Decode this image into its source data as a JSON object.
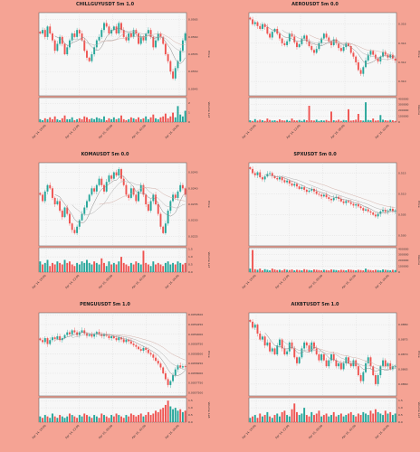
{
  "colors": {
    "background": "#f5a394",
    "up": "#26a69a",
    "down": "#ef5350",
    "ma1": "#888888",
    "ma2": "#b0b0b0",
    "ma3": "#d3b0a8"
  },
  "panels": [
    {
      "title": "CHILLGUYUSDT 5m 1.0",
      "ylabel": "Price",
      "vlabel": "Volume 1e7",
      "chart_data": {
        "type": "candlestick",
        "x_ticks": [
          "Apr 14, 20:00",
          "Apr 14, 22:00",
          "Apr 15, 00:00",
          "Apr 15, 02:00",
          "Apr 15, 04:00"
        ],
        "y_ticks": [
          "0.0565",
          "0.0560",
          "0.0555",
          "0.0550",
          "0.0545"
        ],
        "ylim": [
          0.0543,
          0.0567
        ],
        "v_ticks": [
          "2",
          "1",
          "0"
        ],
        "vlim": [
          0,
          2.6
        ],
        "close": [
          0.0561,
          0.0562,
          0.056,
          0.0563,
          0.0561,
          0.0559,
          0.0556,
          0.0558,
          0.056,
          0.0558,
          0.0555,
          0.0557,
          0.0559,
          0.0561,
          0.056,
          0.0562,
          0.0561,
          0.0559,
          0.0556,
          0.0554,
          0.0553,
          0.0555,
          0.0557,
          0.0559,
          0.056,
          0.0562,
          0.0564,
          0.0563,
          0.0561,
          0.0562,
          0.0563,
          0.0561,
          0.0564,
          0.0562,
          0.056,
          0.0559,
          0.0561,
          0.056,
          0.0562,
          0.0561,
          0.0558,
          0.056,
          0.0559,
          0.0561,
          0.0562,
          0.056,
          0.0557,
          0.0559,
          0.0561,
          0.056,
          0.0558,
          0.0555,
          0.0553,
          0.055,
          0.0548,
          0.0551,
          0.0553,
          0.0556,
          0.0559,
          0.0561
        ],
        "volume": [
          0.3,
          0.2,
          0.4,
          0.3,
          0.5,
          0.3,
          0.6,
          0.3,
          0.2,
          0.4,
          0.7,
          0.3,
          0.3,
          0.5,
          0.2,
          0.3,
          0.4,
          0.3,
          0.6,
          0.5,
          0.3,
          0.4,
          0.3,
          0.5,
          0.4,
          0.3,
          0.6,
          0.2,
          0.4,
          0.3,
          0.5,
          0.3,
          0.4,
          0.7,
          0.3,
          0.2,
          0.3,
          0.5,
          0.4,
          0.3,
          0.5,
          0.3,
          0.4,
          0.6,
          0.3,
          0.5,
          0.8,
          0.4,
          0.3,
          0.5,
          0.6,
          0.9,
          0.4,
          0.6,
          1.0,
          0.5,
          1.7,
          0.8,
          0.6,
          1.2
        ]
      }
    },
    {
      "title": "AEROUSDT 5m 0.0",
      "ylabel": "Price",
      "vlabel": "Volume",
      "chart_data": {
        "type": "candlestick",
        "x_ticks": [
          "Apr 14, 20:00",
          "Apr 14, 22:00",
          "Apr 15, 00:00",
          "Apr 15, 02:00"
        ],
        "y_ticks": [
          "0.316",
          "0.314",
          "0.312",
          "0.310"
        ],
        "ylim": [
          0.3085,
          0.3172
        ],
        "v_ticks": [
          "400000",
          "300000",
          "200000",
          "100000",
          "0"
        ],
        "vlim": [
          0,
          420000
        ],
        "close": [
          0.3165,
          0.316,
          0.3162,
          0.3158,
          0.3155,
          0.316,
          0.3157,
          0.315,
          0.3146,
          0.3152,
          0.3155,
          0.315,
          0.3145,
          0.314,
          0.3138,
          0.3142,
          0.315,
          0.3147,
          0.3141,
          0.3136,
          0.3139,
          0.3145,
          0.3148,
          0.3142,
          0.3137,
          0.3133,
          0.313,
          0.3134,
          0.314,
          0.3145,
          0.315,
          0.3146,
          0.3142,
          0.3138,
          0.3144,
          0.314,
          0.3135,
          0.3132,
          0.3136,
          0.314,
          0.3137,
          0.313,
          0.3126,
          0.312,
          0.3112,
          0.3108,
          0.3115,
          0.3122,
          0.3128,
          0.3132,
          0.3128,
          0.3124,
          0.3121,
          0.3126,
          0.3131,
          0.3128,
          0.3125,
          0.3128,
          0.3124,
          0.3122
        ],
        "volume": [
          30000,
          20000,
          50000,
          25000,
          40000,
          30000,
          20000,
          60000,
          35000,
          25000,
          30000,
          20000,
          45000,
          30000,
          25000,
          35000,
          20000,
          60000,
          30000,
          25000,
          35000,
          20000,
          40000,
          30000,
          280000,
          30000,
          25000,
          40000,
          20000,
          30000,
          25000,
          35000,
          20000,
          180000,
          30000,
          25000,
          40000,
          20000,
          35000,
          30000,
          220000,
          25000,
          30000,
          40000,
          140000,
          30000,
          25000,
          340000,
          35000,
          30000,
          60000,
          25000,
          30000,
          120000,
          40000,
          30000,
          25000,
          35000,
          30000,
          20000
        ]
      }
    },
    {
      "title": "KOMAUSDT 5m 0.0",
      "ylabel": "Price",
      "vlabel": "Volume 1e7",
      "chart_data": {
        "type": "candlestick",
        "x_ticks": [
          "Apr 14, 20:00",
          "Apr 14, 22:00",
          "Apr 15, 00:00",
          "Apr 15, 02:00",
          "Apr 15, 04:00"
        ],
        "y_ticks": [
          "0.0245",
          "0.0240",
          "0.0235",
          "0.0230",
          "0.0225"
        ],
        "ylim": [
          0.0222,
          0.0248
        ],
        "v_ticks": [
          "1.5",
          "1.0",
          "0.5",
          "0.0"
        ],
        "vlim": [
          0,
          1.6
        ],
        "close": [
          0.0238,
          0.0236,
          0.0239,
          0.0241,
          0.024,
          0.0237,
          0.0235,
          0.0236,
          0.0233,
          0.0231,
          0.0234,
          0.0232,
          0.0229,
          0.0227,
          0.0226,
          0.0228,
          0.023,
          0.0232,
          0.0234,
          0.0236,
          0.0238,
          0.024,
          0.0239,
          0.0241,
          0.0243,
          0.0241,
          0.0239,
          0.0242,
          0.0244,
          0.0243,
          0.0245,
          0.0244,
          0.0246,
          0.0243,
          0.0241,
          0.0238,
          0.0237,
          0.024,
          0.0238,
          0.0236,
          0.0239,
          0.0241,
          0.0238,
          0.0235,
          0.0233,
          0.0236,
          0.0238,
          0.0235,
          0.0232,
          0.0228,
          0.0226,
          0.0229,
          0.0233,
          0.0236,
          0.0238,
          0.0237,
          0.0239,
          0.0241,
          0.024,
          0.0238
        ],
        "volume": [
          0.7,
          0.5,
          0.6,
          0.8,
          0.4,
          0.6,
          0.5,
          0.7,
          0.6,
          0.5,
          0.8,
          0.6,
          0.7,
          0.5,
          0.4,
          0.6,
          0.5,
          0.7,
          0.6,
          0.8,
          0.6,
          0.5,
          0.7,
          0.6,
          0.5,
          0.9,
          0.6,
          0.4,
          0.7,
          0.5,
          0.6,
          0.5,
          0.7,
          1.0,
          0.6,
          0.5,
          0.4,
          0.6,
          0.5,
          0.7,
          0.6,
          0.5,
          1.4,
          0.6,
          0.5,
          0.4,
          0.7,
          0.5,
          0.6,
          0.5,
          0.4,
          0.6,
          0.7,
          0.5,
          0.6,
          0.5,
          0.7,
          0.6,
          0.5,
          0.6
        ]
      }
    },
    {
      "title": "SPXUSDT 5m 0.0",
      "ylabel": "Price",
      "vlabel": "Volume",
      "chart_data": {
        "type": "candlestick",
        "x_ticks": [
          "Apr 14, 20:00",
          "Apr 14, 22:00",
          "Apr 15, 00:00",
          "Apr 15, 02:00",
          "Apr 15, 04:00"
        ],
        "y_ticks": [
          "0.515",
          "0.510",
          "0.505",
          "0.500"
        ],
        "ylim": [
          0.4975,
          0.5175
        ],
        "v_ticks": [
          "400000",
          "300000",
          "200000",
          "100000",
          "0"
        ],
        "vlim": [
          0,
          420000
        ],
        "close": [
          0.516,
          0.515,
          0.5145,
          0.5152,
          0.514,
          0.5135,
          0.5142,
          0.5148,
          0.515,
          0.5143,
          0.5138,
          0.5135,
          0.514,
          0.5133,
          0.5128,
          0.5132,
          0.5125,
          0.512,
          0.5124,
          0.5118,
          0.5112,
          0.5116,
          0.511,
          0.5105,
          0.5108,
          0.5112,
          0.5106,
          0.51,
          0.5098,
          0.5094,
          0.5098,
          0.5092,
          0.5088,
          0.5085,
          0.509,
          0.5093,
          0.5088,
          0.5082,
          0.5078,
          0.5083,
          0.508,
          0.5076,
          0.5072,
          0.5075,
          0.507,
          0.5066,
          0.506,
          0.5063,
          0.5058,
          0.5055,
          0.505,
          0.5046,
          0.5052,
          0.5058,
          0.5062,
          0.5057,
          0.506,
          0.5064,
          0.5058,
          0.506
        ],
        "volume": [
          60000,
          380000,
          50000,
          40000,
          60000,
          30000,
          50000,
          40000,
          30000,
          60000,
          45000,
          35000,
          40000,
          30000,
          50000,
          40000,
          35000,
          45000,
          30000,
          40000,
          35000,
          30000,
          50000,
          40000,
          35000,
          30000,
          45000,
          40000,
          35000,
          30000,
          40000,
          35000,
          30000,
          45000,
          40000,
          35000,
          30000,
          40000,
          35000,
          30000,
          45000,
          40000,
          35000,
          30000,
          40000,
          35000,
          30000,
          60000,
          40000,
          35000,
          30000,
          40000,
          35000,
          30000,
          45000,
          40000,
          35000,
          30000,
          40000,
          35000
        ]
      }
    },
    {
      "title": "PENGUUSDT 5m 1.0",
      "ylabel": "Price",
      "vlabel": "Volume 1e8",
      "chart_data": {
        "type": "candlestick",
        "x_ticks": [
          "Apr 14, 20:00",
          "Apr 14, 22:00",
          "Apr 15, 00:00",
          "Apr 15, 02:00",
          "Apr 15, 04:00"
        ],
        "y_ticks": [
          "0.0059500",
          "0.0059250",
          "0.0059000",
          "0.0058750",
          "0.0058500",
          "0.0058250",
          "0.0058000",
          "0.0057750",
          "0.0057500"
        ],
        "ylim": [
          0.005742,
          0.005955
        ],
        "v_ticks": [
          "1.5",
          "1.0",
          "0.5",
          "0.0"
        ],
        "vlim": [
          0,
          1.7
        ],
        "close": [
          0.005885,
          0.00588,
          0.00589,
          0.005875,
          0.005885,
          0.005892,
          0.005888,
          0.005895,
          0.005885,
          0.00589,
          0.005898,
          0.005905,
          0.0059,
          0.00591,
          0.005905,
          0.005898,
          0.005905,
          0.00591,
          0.005902,
          0.005896,
          0.0059,
          0.005894,
          0.0059,
          0.005906,
          0.0059,
          0.005895,
          0.0059,
          0.005896,
          0.00589,
          0.005895,
          0.00589,
          0.005885,
          0.005892,
          0.005887,
          0.00588,
          0.005886,
          0.005882,
          0.005876,
          0.005872,
          0.005868,
          0.005862,
          0.005858,
          0.005865,
          0.00586,
          0.005852,
          0.005848,
          0.00584,
          0.005832,
          0.005825,
          0.005815,
          0.0058,
          0.005785,
          0.00577,
          0.00578,
          0.005795,
          0.00581,
          0.00582,
          0.005815,
          0.005818,
          0.005816
        ],
        "volume": [
          0.4,
          0.3,
          0.5,
          0.4,
          0.3,
          0.6,
          0.4,
          0.3,
          0.5,
          0.4,
          0.3,
          0.4,
          0.6,
          0.5,
          0.4,
          0.3,
          0.5,
          0.4,
          0.6,
          0.5,
          0.4,
          0.3,
          0.5,
          0.4,
          0.3,
          0.6,
          0.5,
          0.4,
          0.3,
          0.5,
          0.4,
          0.6,
          0.5,
          0.4,
          0.3,
          0.5,
          0.4,
          0.6,
          0.5,
          0.4,
          0.5,
          0.6,
          0.4,
          0.5,
          0.7,
          0.5,
          0.6,
          0.8,
          0.7,
          0.9,
          1.0,
          1.2,
          1.5,
          1.1,
          0.9,
          1.0,
          0.8,
          0.9,
          0.7,
          0.8
        ]
      }
    },
    {
      "title": "AIXBTUSDT 5m 1.0",
      "ylabel": "Price",
      "vlabel": "Volume 1e7",
      "chart_data": {
        "type": "candlestick",
        "x_ticks": [
          "Apr 14, 20:00",
          "Apr 14, 22:00",
          "Apr 15, 00:00",
          "Apr 15, 02:00",
          "Apr 15, 04:00"
        ],
        "y_ticks": [
          "0.0880",
          "0.0875",
          "0.0870",
          "0.0865",
          "0.0860"
        ],
        "ylim": [
          0.0856,
          0.0884
        ],
        "v_ticks": [
          "1.5",
          "1.0",
          "0.5",
          "0.0"
        ],
        "vlim": [
          0,
          1.7
        ],
        "close": [
          0.0881,
          0.0879,
          0.088,
          0.0877,
          0.0875,
          0.0876,
          0.0873,
          0.0874,
          0.0871,
          0.0872,
          0.087,
          0.0873,
          0.0875,
          0.0872,
          0.087,
          0.0871,
          0.0874,
          0.0872,
          0.0869,
          0.0867,
          0.0869,
          0.0872,
          0.0874,
          0.0873,
          0.0871,
          0.0874,
          0.0872,
          0.087,
          0.0868,
          0.087,
          0.0868,
          0.0866,
          0.0868,
          0.087,
          0.0868,
          0.0866,
          0.0867,
          0.0865,
          0.0867,
          0.0869,
          0.0867,
          0.0866,
          0.0868,
          0.0866,
          0.0863,
          0.0861,
          0.0864,
          0.0867,
          0.0869,
          0.0866,
          0.0863,
          0.086,
          0.0863,
          0.0866,
          0.0868,
          0.0866,
          0.0867,
          0.0865,
          0.0866,
          0.0866
        ],
        "volume": [
          0.3,
          0.4,
          0.5,
          0.3,
          0.6,
          0.4,
          0.5,
          0.7,
          0.4,
          0.3,
          0.5,
          0.6,
          0.4,
          0.7,
          0.8,
          0.5,
          0.4,
          0.9,
          1.3,
          0.7,
          0.5,
          0.6,
          1.0,
          0.5,
          0.4,
          0.7,
          0.5,
          0.6,
          0.8,
          0.4,
          0.5,
          0.6,
          0.4,
          0.5,
          0.7,
          0.4,
          0.5,
          0.6,
          0.4,
          0.5,
          0.6,
          0.7,
          0.5,
          0.4,
          0.6,
          0.5,
          0.7,
          0.6,
          0.5,
          0.8,
          0.6,
          0.9,
          0.7,
          0.6,
          0.5,
          0.8,
          0.6,
          0.7,
          0.5,
          0.6
        ]
      }
    }
  ]
}
